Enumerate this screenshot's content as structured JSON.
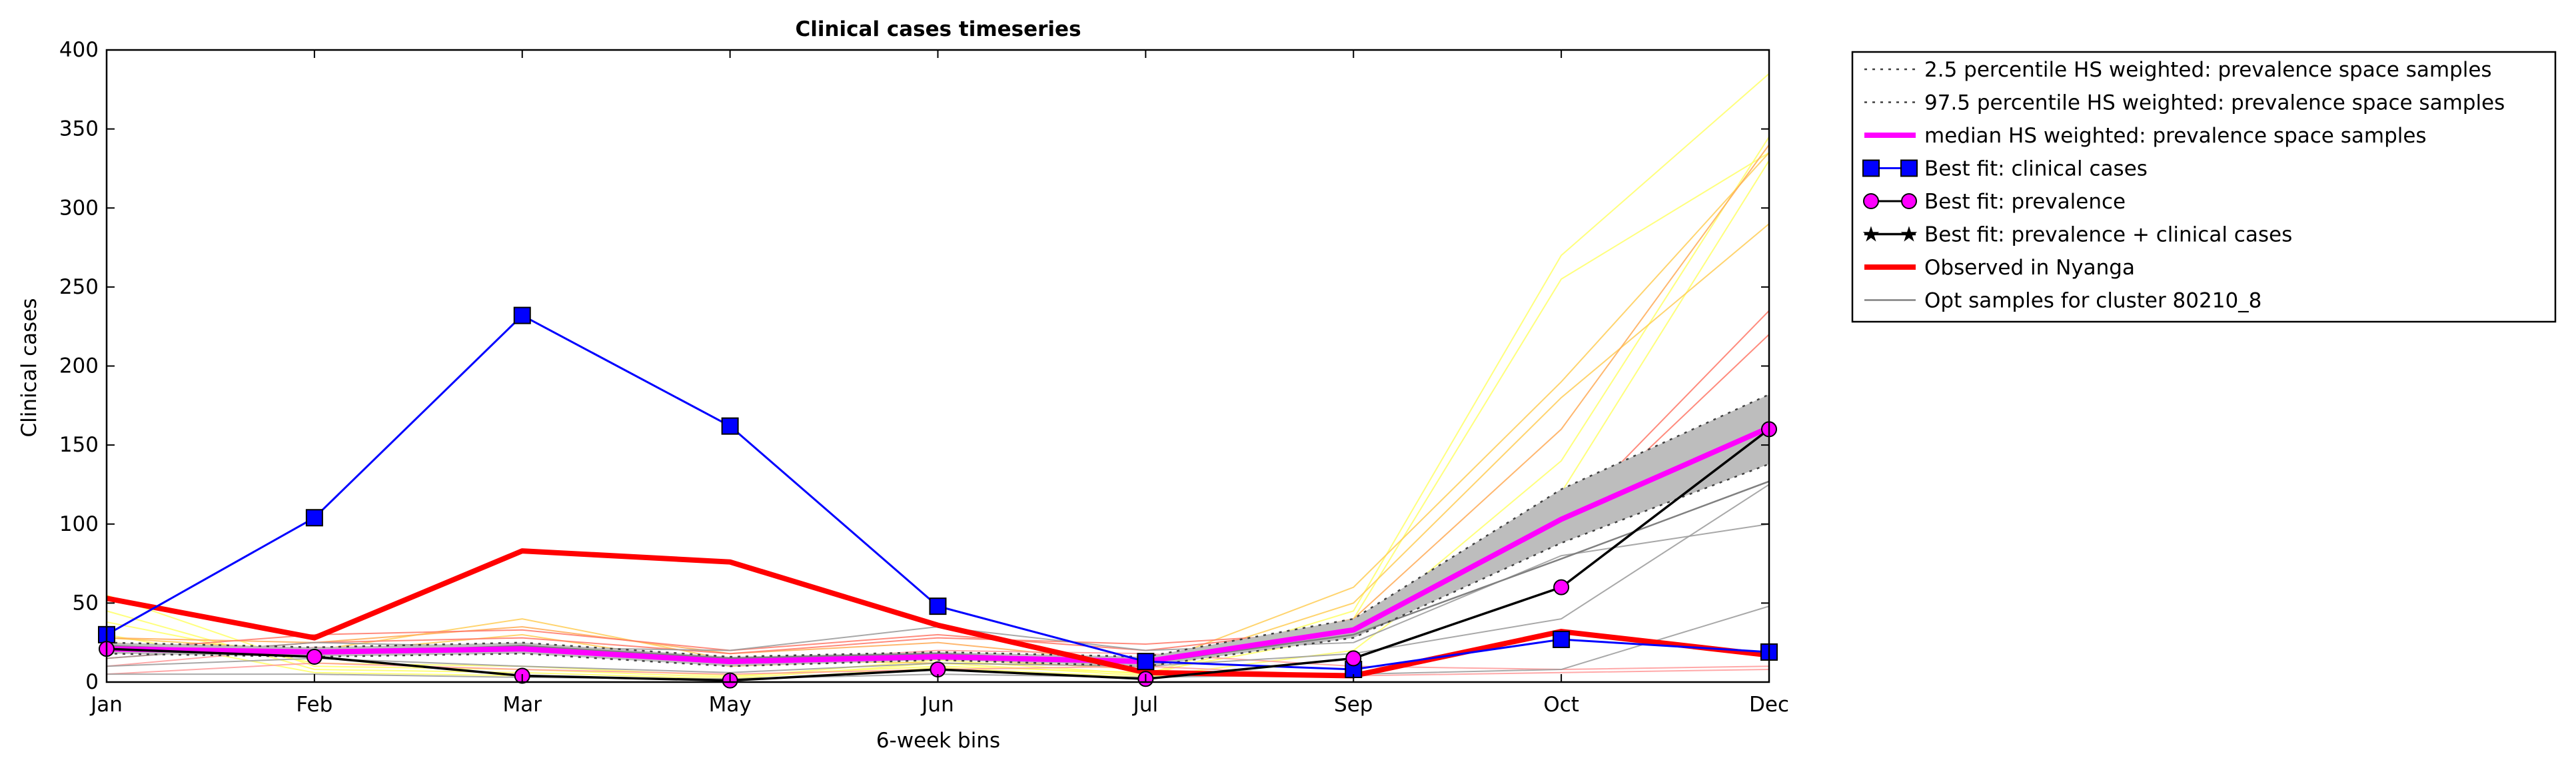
{
  "chart_data": {
    "type": "line",
    "title": "Clinical cases timeseries",
    "xlabel": "6-week bins",
    "ylabel": "Clinical cases",
    "categories": [
      "Jan",
      "Feb",
      "Mar",
      "May",
      "Jun",
      "Jul",
      "Sep",
      "Oct",
      "Dec"
    ],
    "ylim": [
      0,
      400
    ],
    "yticks": [
      0,
      50,
      100,
      150,
      200,
      250,
      300,
      350,
      400
    ],
    "grid": false,
    "legend_position": "outside-right",
    "band": {
      "lower": [
        18,
        16,
        18,
        10,
        14,
        10,
        28,
        88,
        138
      ],
      "upper": [
        25,
        22,
        25,
        16,
        19,
        16,
        40,
        122,
        182
      ]
    },
    "series": [
      {
        "name": "2.5 percentile HS weighted: prevalence space samples",
        "style": "dotted",
        "color": "#404040",
        "values": [
          18,
          16,
          18,
          10,
          14,
          10,
          28,
          88,
          138
        ]
      },
      {
        "name": "97.5 percentile HS weighted: prevalence space samples",
        "style": "dotted",
        "color": "#404040",
        "values": [
          25,
          22,
          25,
          16,
          19,
          16,
          40,
          122,
          182
        ]
      },
      {
        "name": "median HS weighted: prevalence space samples",
        "style": "solid",
        "color": "#ff00ff",
        "values": [
          21,
          19,
          21,
          13,
          16,
          13,
          33,
          103,
          161
        ]
      },
      {
        "name": "Best fit: clinical cases",
        "style": "square-markers",
        "color": "#0000ff",
        "values": [
          30,
          104,
          232,
          162,
          48,
          13,
          8,
          27,
          19
        ]
      },
      {
        "name": "Best fit: prevalence",
        "style": "circle-markers",
        "color": "#ff00ff",
        "values": [
          21,
          16,
          4,
          1,
          8,
          2,
          15,
          60,
          160
        ]
      },
      {
        "name": "Best fit: prevalence + clinical cases",
        "style": "star-markers",
        "color": "#000000",
        "values": [
          21,
          16,
          4,
          1,
          8,
          2,
          15,
          60,
          160
        ]
      },
      {
        "name": "Observed in Nyanga",
        "style": "solid-thick",
        "color": "#ff0000",
        "values": [
          53,
          28,
          83,
          76,
          36,
          6,
          4,
          32,
          17
        ]
      },
      {
        "name": "Opt samples for cluster 80210_8",
        "style": "thin",
        "color": "#808080",
        "values": [
          23,
          18,
          23,
          15,
          18,
          12,
          30,
          78,
          127
        ]
      }
    ],
    "samples": [
      {
        "color": "#ffff66",
        "values": [
          55,
          10,
          8,
          3,
          14,
          5,
          45,
          270,
          385
        ]
      },
      {
        "color": "#ffff66",
        "values": [
          45,
          8,
          6,
          2,
          12,
          4,
          40,
          255,
          335
        ]
      },
      {
        "color": "#ffff66",
        "values": [
          38,
          12,
          10,
          4,
          10,
          6,
          30,
          140,
          345
        ]
      },
      {
        "color": "#ffff66",
        "values": [
          30,
          6,
          4,
          1,
          9,
          3,
          20,
          120,
          330
        ]
      },
      {
        "color": "#ffcc55",
        "values": [
          28,
          20,
          40,
          14,
          12,
          10,
          60,
          190,
          335
        ]
      },
      {
        "color": "#ffcc55",
        "values": [
          25,
          18,
          30,
          10,
          15,
          8,
          50,
          180,
          290
        ]
      },
      {
        "color": "#ffaa55",
        "values": [
          28,
          25,
          35,
          18,
          25,
          12,
          40,
          160,
          340
        ]
      },
      {
        "color": "#ff7766",
        "values": [
          20,
          30,
          33,
          20,
          30,
          20,
          35,
          100,
          235
        ]
      },
      {
        "color": "#ff7766",
        "values": [
          15,
          25,
          28,
          18,
          28,
          24,
          32,
          95,
          220
        ]
      },
      {
        "color": "#ff9999",
        "values": [
          10,
          22,
          20,
          12,
          20,
          18,
          10,
          8,
          10
        ]
      },
      {
        "color": "#ff9999",
        "values": [
          5,
          12,
          8,
          5,
          8,
          10,
          4,
          6,
          8
        ]
      },
      {
        "color": "#999999",
        "values": [
          15,
          25,
          22,
          20,
          35,
          20,
          25,
          80,
          100
        ]
      },
      {
        "color": "#999999",
        "values": [
          10,
          15,
          10,
          6,
          12,
          10,
          18,
          40,
          125
        ]
      },
      {
        "color": "#999999",
        "values": [
          5,
          5,
          3,
          2,
          5,
          3,
          5,
          8,
          48
        ]
      }
    ]
  }
}
